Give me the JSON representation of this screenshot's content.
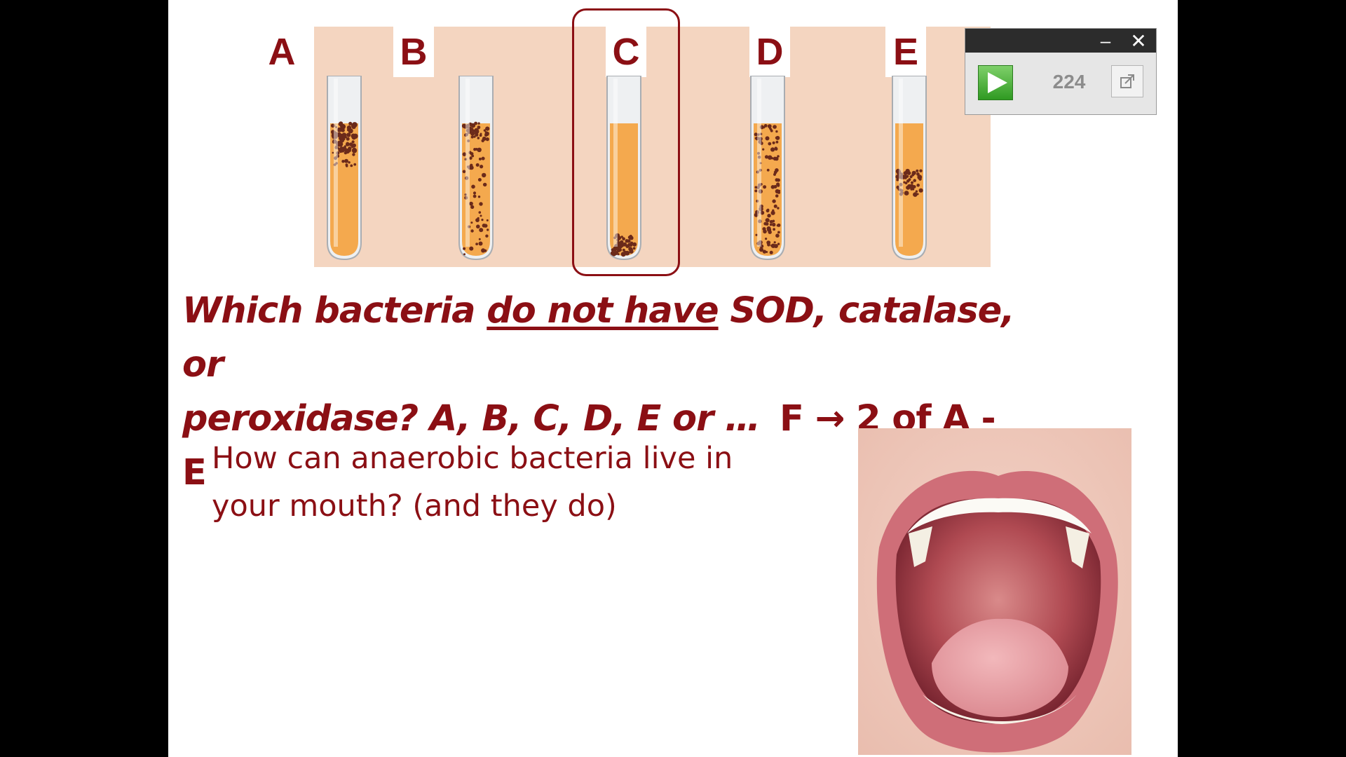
{
  "tubes": [
    {
      "label": "A",
      "growth": "top"
    },
    {
      "label": "B",
      "growth": "throughout-top-heavy"
    },
    {
      "label": "C",
      "growth": "bottom"
    },
    {
      "label": "D",
      "growth": "throughout-even"
    },
    {
      "label": "E",
      "growth": "middle-band"
    }
  ],
  "highlighted_tube": "C",
  "question": {
    "part1": "Which bacteria ",
    "underlined": "do not have",
    "part2": " SOD, catalase, or",
    "line2": "peroxidase?   A, B, C, D, E or …",
    "answer": "F → 2 of A - E"
  },
  "subtext": {
    "line1": "How can anaerobic bacteria live in",
    "line2": "your mouth? (and they do)"
  },
  "widget": {
    "count": "224",
    "minimize_glyph": "–",
    "close_glyph": "✕",
    "play_icon": "play-icon",
    "expand_icon": "expand-icon"
  },
  "colors": {
    "text": "#8b0f14",
    "medium": "#f4a94e",
    "colony": "#6b2a1a",
    "tube_background": "#f4d5c0"
  },
  "images": {
    "mouth": "open-mouth-photo"
  }
}
